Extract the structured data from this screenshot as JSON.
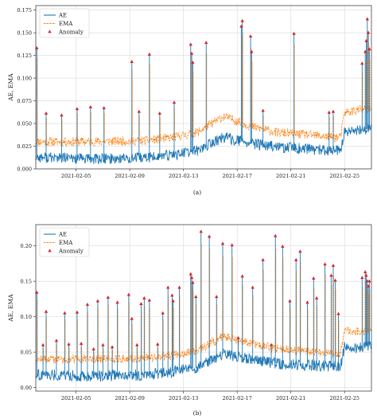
{
  "colors": {
    "ae": "#1f77b4",
    "ema": "#ff7f0e",
    "anomaly": "#d62728",
    "grid": "#d9d9d9",
    "axis": "#444444"
  },
  "chart_data": [
    {
      "type": "line",
      "caption": "(a)",
      "ylabel": "AE, EMA",
      "ylim": [
        0,
        0.18
      ],
      "yticks": [
        "0.000",
        "0.025",
        "0.050",
        "0.075",
        "0.100",
        "0.125",
        "0.150",
        "0.175"
      ],
      "ytick_values": [
        0,
        0.025,
        0.05,
        0.075,
        0.1,
        0.125,
        0.15,
        0.175
      ],
      "x_dates": [
        "2021-02-02",
        "2021-02-27"
      ],
      "xticks": [
        "2021-02-05",
        "2021-02-09",
        "2021-02-13",
        "2021-02-17",
        "2021-02-21",
        "2021-02-25"
      ],
      "legend": {
        "position": "top-left",
        "entries": [
          "AE",
          "EMA",
          "Anomaly"
        ]
      },
      "grid": true,
      "series": [
        {
          "name": "AE",
          "baseline": [
            [
              0,
              0.013
            ],
            [
              4,
              0.011
            ],
            [
              8,
              0.012
            ],
            [
              10,
              0.015
            ],
            [
              12,
              0.02
            ],
            [
              14,
              0.035
            ],
            [
              16,
              0.028
            ],
            [
              18,
              0.024
            ],
            [
              20,
              0.022
            ],
            [
              22,
              0.02
            ],
            [
              22.7,
              0.02
            ],
            [
              23,
              0.04
            ],
            [
              24,
              0.042
            ],
            [
              25,
              0.045
            ]
          ]
        },
        {
          "name": "EMA",
          "baseline": [
            [
              0,
              0.03
            ],
            [
              4,
              0.03
            ],
            [
              8,
              0.031
            ],
            [
              10,
              0.034
            ],
            [
              12,
              0.04
            ],
            [
              14,
              0.058
            ],
            [
              16,
              0.047
            ],
            [
              18,
              0.04
            ],
            [
              20,
              0.038
            ],
            [
              22,
              0.035
            ],
            [
              22.7,
              0.035
            ],
            [
              23,
              0.062
            ],
            [
              24,
              0.065
            ],
            [
              25,
              0.066
            ]
          ]
        }
      ],
      "anomalies": [
        [
          0.1,
          0.133
        ],
        [
          1.0,
          0.061
        ],
        [
          2.5,
          0.059
        ],
        [
          4.0,
          0.066
        ],
        [
          5.3,
          0.068
        ],
        [
          6.6,
          0.067
        ],
        [
          9.3,
          0.118
        ],
        [
          10.0,
          0.063
        ],
        [
          11.0,
          0.126
        ],
        [
          12.0,
          0.061
        ],
        [
          13.4,
          0.073
        ],
        [
          15.0,
          0.137
        ],
        [
          15.1,
          0.127
        ],
        [
          15.2,
          0.117
        ],
        [
          16.5,
          0.139
        ],
        [
          19.9,
          0.157
        ],
        [
          20.0,
          0.163
        ],
        [
          20.8,
          0.146
        ],
        [
          20.9,
          0.129
        ],
        [
          22.0,
          0.064
        ],
        [
          25.0,
          0.149
        ],
        [
          28.4,
          0.062
        ],
        [
          28.8,
          0.063
        ],
        [
          31.6,
          0.116
        ],
        [
          31.9,
          0.129
        ],
        [
          32.0,
          0.141
        ],
        [
          32.1,
          0.165
        ],
        [
          32.2,
          0.15
        ],
        [
          32.3,
          0.132
        ]
      ]
    },
    {
      "type": "line",
      "caption": "(b)",
      "ylabel": "AE, EMA",
      "ylim": [
        -0.005,
        0.23
      ],
      "yticks": [
        "0.00",
        "0.05",
        "0.10",
        "0.15",
        "0.20"
      ],
      "ytick_values": [
        0,
        0.05,
        0.1,
        0.15,
        0.2
      ],
      "x_dates": [
        "2021-02-02",
        "2021-02-27"
      ],
      "xticks": [
        "2021-02-05",
        "2021-02-09",
        "2021-02-13",
        "2021-02-17",
        "2021-02-21",
        "2021-02-25"
      ],
      "legend": {
        "position": "top-left",
        "entries": [
          "AE",
          "EMA",
          "Anomaly"
        ]
      },
      "grid": true,
      "series": [
        {
          "name": "AE",
          "baseline": [
            [
              0,
              0.018
            ],
            [
              4,
              0.016
            ],
            [
              8,
              0.018
            ],
            [
              10,
              0.022
            ],
            [
              12,
              0.028
            ],
            [
              14,
              0.048
            ],
            [
              16,
              0.04
            ],
            [
              18,
              0.034
            ],
            [
              20,
              0.032
            ],
            [
              22,
              0.03
            ],
            [
              22.7,
              0.03
            ],
            [
              23,
              0.058
            ],
            [
              24,
              0.055
            ],
            [
              25,
              0.06
            ]
          ]
        },
        {
          "name": "EMA",
          "baseline": [
            [
              0,
              0.04
            ],
            [
              4,
              0.04
            ],
            [
              8,
              0.041
            ],
            [
              10,
              0.045
            ],
            [
              12,
              0.052
            ],
            [
              14,
              0.073
            ],
            [
              16,
              0.062
            ],
            [
              18,
              0.055
            ],
            [
              20,
              0.052
            ],
            [
              22,
              0.048
            ],
            [
              22.7,
              0.048
            ],
            [
              23,
              0.082
            ],
            [
              24,
              0.078
            ],
            [
              25,
              0.08
            ]
          ]
        }
      ],
      "anomalies": [
        [
          0.1,
          0.134
        ],
        [
          0.7,
          0.06
        ],
        [
          1.0,
          0.107
        ],
        [
          2.0,
          0.066
        ],
        [
          2.8,
          0.105
        ],
        [
          3.2,
          0.061
        ],
        [
          4.0,
          0.106
        ],
        [
          4.4,
          0.062
        ],
        [
          5.0,
          0.117
        ],
        [
          5.6,
          0.054
        ],
        [
          6.0,
          0.122
        ],
        [
          6.5,
          0.06
        ],
        [
          7.0,
          0.127
        ],
        [
          7.4,
          0.057
        ],
        [
          7.9,
          0.12
        ],
        [
          9.0,
          0.131
        ],
        [
          9.3,
          0.097
        ],
        [
          9.8,
          0.06
        ],
        [
          10.2,
          0.118
        ],
        [
          10.5,
          0.126
        ],
        [
          11.0,
          0.123
        ],
        [
          11.8,
          0.061
        ],
        [
          12.3,
          0.105
        ],
        [
          12.8,
          0.141
        ],
        [
          13.2,
          0.13
        ],
        [
          13.3,
          0.122
        ],
        [
          13.9,
          0.141
        ],
        [
          15.0,
          0.16
        ],
        [
          15.1,
          0.155
        ],
        [
          15.2,
          0.148
        ],
        [
          15.5,
          0.128
        ],
        [
          16.0,
          0.22
        ],
        [
          16.8,
          0.213
        ],
        [
          17.5,
          0.128
        ],
        [
          18.1,
          0.203
        ],
        [
          19.0,
          0.201
        ],
        [
          19.6,
          0.07
        ],
        [
          20.0,
          0.157
        ],
        [
          21.0,
          0.141
        ],
        [
          22.0,
          0.18
        ],
        [
          22.8,
          0.06
        ],
        [
          23.2,
          0.214
        ],
        [
          23.9,
          0.199
        ],
        [
          24.6,
          0.122
        ],
        [
          25.2,
          0.18
        ],
        [
          25.6,
          0.192
        ],
        [
          26.3,
          0.12
        ],
        [
          26.9,
          0.154
        ],
        [
          27.2,
          0.126
        ],
        [
          28.0,
          0.174
        ],
        [
          28.6,
          0.158
        ],
        [
          28.8,
          0.172
        ],
        [
          29.0,
          0.151
        ],
        [
          29.3,
          0.104
        ],
        [
          31.6,
          0.155
        ],
        [
          31.9,
          0.163
        ],
        [
          32.0,
          0.158
        ],
        [
          32.1,
          0.15
        ],
        [
          32.2,
          0.143
        ],
        [
          32.3,
          0.15
        ]
      ]
    }
  ]
}
